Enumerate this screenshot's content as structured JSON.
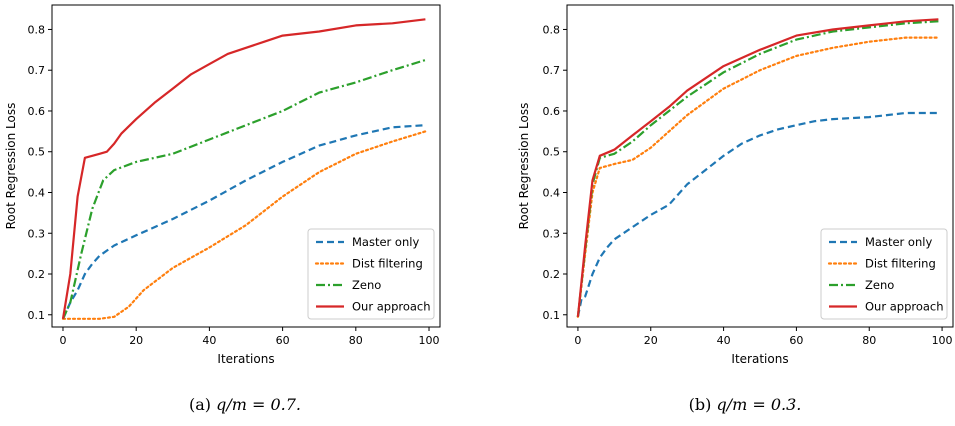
{
  "chart_data": [
    {
      "type": "line",
      "caption_prefix": "(a) ",
      "caption_math": "q/m = 0.7.",
      "xlabel": "Iterations",
      "ylabel": "Root Regression Loss",
      "xlim": [
        -3,
        103
      ],
      "ylim": [
        0.07,
        0.86
      ],
      "xticks": [
        0,
        20,
        40,
        60,
        80,
        100
      ],
      "yticks": [
        0.1,
        0.2,
        0.3,
        0.4,
        0.5,
        0.6,
        0.7,
        0.8
      ],
      "legend_position": "lower-right",
      "series": [
        {
          "name": "Master only",
          "color": "#1f77b4",
          "style": "dashed",
          "points": [
            [
              0,
              0.09
            ],
            [
              2,
              0.13
            ],
            [
              4,
              0.16
            ],
            [
              6,
              0.2
            ],
            [
              8,
              0.225
            ],
            [
              10,
              0.245
            ],
            [
              14,
              0.27
            ],
            [
              20,
              0.295
            ],
            [
              30,
              0.335
            ],
            [
              40,
              0.38
            ],
            [
              50,
              0.43
            ],
            [
              60,
              0.475
            ],
            [
              70,
              0.515
            ],
            [
              80,
              0.54
            ],
            [
              90,
              0.56
            ],
            [
              99,
              0.565
            ]
          ]
        },
        {
          "name": "Dist filtering",
          "color": "#ff7f0e",
          "style": "dotted",
          "points": [
            [
              0,
              0.09
            ],
            [
              5,
              0.09
            ],
            [
              10,
              0.09
            ],
            [
              14,
              0.095
            ],
            [
              18,
              0.12
            ],
            [
              22,
              0.16
            ],
            [
              30,
              0.215
            ],
            [
              40,
              0.265
            ],
            [
              50,
              0.32
            ],
            [
              60,
              0.39
            ],
            [
              70,
              0.45
            ],
            [
              80,
              0.495
            ],
            [
              90,
              0.525
            ],
            [
              99,
              0.55
            ]
          ]
        },
        {
          "name": "Zeno",
          "color": "#2ca02c",
          "style": "dashdot",
          "points": [
            [
              0,
              0.09
            ],
            [
              2,
              0.13
            ],
            [
              5,
              0.25
            ],
            [
              8,
              0.36
            ],
            [
              11,
              0.43
            ],
            [
              14,
              0.455
            ],
            [
              20,
              0.475
            ],
            [
              30,
              0.495
            ],
            [
              40,
              0.53
            ],
            [
              50,
              0.565
            ],
            [
              60,
              0.6
            ],
            [
              70,
              0.645
            ],
            [
              80,
              0.67
            ],
            [
              90,
              0.7
            ],
            [
              99,
              0.725
            ]
          ]
        },
        {
          "name": "Our approach",
          "color": "#d62728",
          "style": "solid",
          "points": [
            [
              0,
              0.09
            ],
            [
              2,
              0.2
            ],
            [
              4,
              0.39
            ],
            [
              6,
              0.485
            ],
            [
              8,
              0.49
            ],
            [
              10,
              0.495
            ],
            [
              12,
              0.5
            ],
            [
              14,
              0.52
            ],
            [
              16,
              0.545
            ],
            [
              20,
              0.58
            ],
            [
              25,
              0.62
            ],
            [
              30,
              0.655
            ],
            [
              35,
              0.69
            ],
            [
              40,
              0.715
            ],
            [
              45,
              0.74
            ],
            [
              50,
              0.755
            ],
            [
              55,
              0.77
            ],
            [
              60,
              0.785
            ],
            [
              70,
              0.795
            ],
            [
              80,
              0.81
            ],
            [
              90,
              0.815
            ],
            [
              99,
              0.825
            ]
          ]
        }
      ]
    },
    {
      "type": "line",
      "caption_prefix": "(b) ",
      "caption_math": "q/m = 0.3.",
      "xlabel": "Iterations",
      "ylabel": "Root Regression Loss",
      "xlim": [
        -3,
        103
      ],
      "ylim": [
        0.07,
        0.86
      ],
      "xticks": [
        0,
        20,
        40,
        60,
        80,
        100
      ],
      "yticks": [
        0.1,
        0.2,
        0.3,
        0.4,
        0.5,
        0.6,
        0.7,
        0.8
      ],
      "legend_position": "lower-right",
      "series": [
        {
          "name": "Master only",
          "color": "#1f77b4",
          "style": "dashed",
          "points": [
            [
              0,
              0.095
            ],
            [
              1,
              0.14
            ],
            [
              2,
              0.145
            ],
            [
              4,
              0.2
            ],
            [
              6,
              0.24
            ],
            [
              8,
              0.265
            ],
            [
              10,
              0.285
            ],
            [
              15,
              0.315
            ],
            [
              20,
              0.345
            ],
            [
              25,
              0.37
            ],
            [
              30,
              0.42
            ],
            [
              35,
              0.455
            ],
            [
              40,
              0.49
            ],
            [
              45,
              0.52
            ],
            [
              50,
              0.54
            ],
            [
              55,
              0.555
            ],
            [
              60,
              0.565
            ],
            [
              65,
              0.575
            ],
            [
              70,
              0.58
            ],
            [
              80,
              0.585
            ],
            [
              90,
              0.595
            ],
            [
              99,
              0.595
            ]
          ]
        },
        {
          "name": "Dist filtering",
          "color": "#ff7f0e",
          "style": "dotted",
          "points": [
            [
              0,
              0.095
            ],
            [
              2,
              0.25
            ],
            [
              4,
              0.4
            ],
            [
              6,
              0.46
            ],
            [
              10,
              0.47
            ],
            [
              15,
              0.48
            ],
            [
              20,
              0.51
            ],
            [
              25,
              0.55
            ],
            [
              30,
              0.59
            ],
            [
              40,
              0.655
            ],
            [
              50,
              0.7
            ],
            [
              60,
              0.735
            ],
            [
              70,
              0.755
            ],
            [
              80,
              0.77
            ],
            [
              90,
              0.78
            ],
            [
              99,
              0.78
            ]
          ]
        },
        {
          "name": "Zeno",
          "color": "#2ca02c",
          "style": "dashdot",
          "points": [
            [
              0,
              0.095
            ],
            [
              2,
              0.26
            ],
            [
              4,
              0.42
            ],
            [
              6,
              0.485
            ],
            [
              10,
              0.495
            ],
            [
              15,
              0.525
            ],
            [
              20,
              0.565
            ],
            [
              25,
              0.6
            ],
            [
              30,
              0.635
            ],
            [
              40,
              0.695
            ],
            [
              50,
              0.74
            ],
            [
              60,
              0.775
            ],
            [
              70,
              0.795
            ],
            [
              80,
              0.805
            ],
            [
              90,
              0.815
            ],
            [
              99,
              0.82
            ]
          ]
        },
        {
          "name": "Our approach",
          "color": "#d62728",
          "style": "solid",
          "points": [
            [
              0,
              0.095
            ],
            [
              2,
              0.27
            ],
            [
              4,
              0.43
            ],
            [
              6,
              0.49
            ],
            [
              10,
              0.505
            ],
            [
              15,
              0.54
            ],
            [
              20,
              0.575
            ],
            [
              25,
              0.61
            ],
            [
              30,
              0.65
            ],
            [
              40,
              0.71
            ],
            [
              50,
              0.75
            ],
            [
              60,
              0.785
            ],
            [
              70,
              0.8
            ],
            [
              80,
              0.81
            ],
            [
              90,
              0.82
            ],
            [
              99,
              0.825
            ]
          ]
        }
      ]
    }
  ]
}
